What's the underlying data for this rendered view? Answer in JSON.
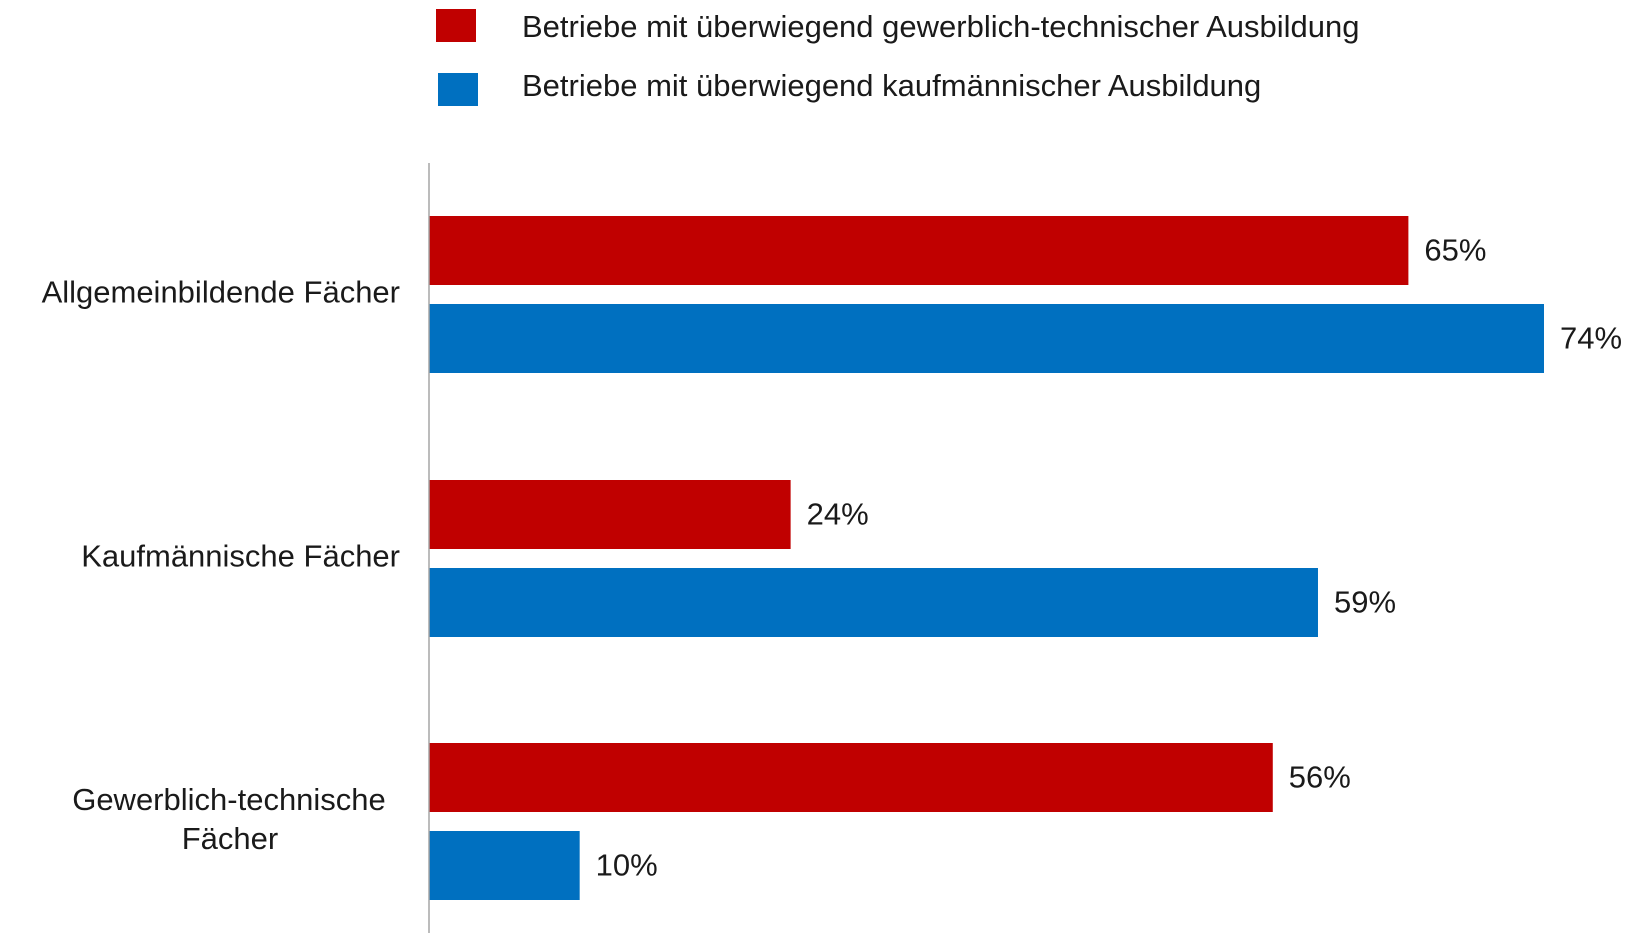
{
  "chart_data": {
    "type": "bar",
    "orientation": "horizontal",
    "categories": [
      [
        "Allgemeinbildende Fächer"
      ],
      [
        "Kaufmännische Fächer"
      ],
      [
        "Gewerblich-technische",
        "Fächer"
      ]
    ],
    "series": [
      {
        "name": "Betriebe mit überwiegend gewerblich-technischer Ausbildung",
        "color": "#c00000",
        "values": [
          65,
          24,
          56
        ],
        "labels": [
          "65%",
          "24%",
          "56%"
        ]
      },
      {
        "name": "Betriebe mit überwiegend kaufmännischer Ausbildung",
        "color": "#0070c0",
        "values": [
          74,
          59,
          10
        ],
        "labels": [
          "74%",
          "59%",
          "10%"
        ]
      }
    ],
    "xlim": [
      0,
      74
    ],
    "unit": "%",
    "legend_position": "top",
    "grid": false
  }
}
